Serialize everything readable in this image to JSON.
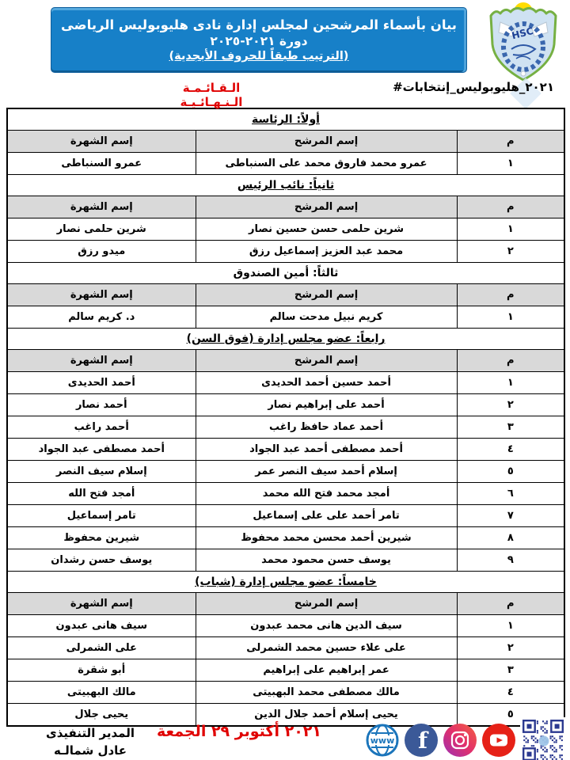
{
  "banner": {
    "line1": "بيان بأسماء المرشحين لمجلس إدارة نادى هليوبوليس الرياضى",
    "line2": "دورة ٢٠٢١-٢٠٢٥",
    "line3": "(الترتيب طبقاً للحروف الأبجدية)"
  },
  "logo": {
    "monogram": "HSC"
  },
  "subheader": {
    "hashtag_text": "#إنتخابات_هليوبوليس_٢٠٢١",
    "hashtag_parts": [
      "#",
      "إنتخابات",
      "_",
      "هليوبوليس",
      "_",
      "٢٠٢١"
    ],
    "final_list_label": "الـقـائـمـة الـنـهـائـيـة"
  },
  "table": {
    "columns": {
      "serial": "م",
      "candidate": "إسم المرشح",
      "known_as": "إسم الشهرة"
    },
    "sections": [
      {
        "title": "أولاً: الرئاسة",
        "underline": true,
        "rows": [
          {
            "no": "١",
            "candidate": "عمرو محمد فاروق محمد على السنباطى",
            "known_as": "عمرو السنباطى"
          }
        ]
      },
      {
        "title": "ثانياً: نائب الرئيس",
        "underline": true,
        "rows": [
          {
            "no": "١",
            "candidate": "شرين حلمى حسن حسين نصار",
            "known_as": "شرين حلمى نصار"
          },
          {
            "no": "٢",
            "candidate": "محمد عبد العزيز إسماعيل رزق",
            "known_as": "ميدو رزق"
          }
        ]
      },
      {
        "title": "ثالثاً: أمين الصندوق",
        "underline": false,
        "rows": [
          {
            "no": "١",
            "candidate": "كريم نبيل مدحت سالم",
            "known_as": "د. كريم سالم"
          }
        ]
      },
      {
        "title": "رابعاً: عضو مجلس إدارة (فوق السن)",
        "underline": true,
        "rows": [
          {
            "no": "١",
            "candidate": "أحمد حسين أحمد الحديدى",
            "known_as": "أحمد الحديدى"
          },
          {
            "no": "٢",
            "candidate": "أحمد على إبراهيم نصار",
            "known_as": "أحمد نصار"
          },
          {
            "no": "٣",
            "candidate": "أحمد عماد حافظ راغب",
            "known_as": "أحمد راغب"
          },
          {
            "no": "٤",
            "candidate": "أحمد مصطفى أحمد عبد الجواد",
            "known_as": "أحمد مصطفى عبد الجواد"
          },
          {
            "no": "٥",
            "candidate": "إسلام أحمد سيف النصر عمر",
            "known_as": "إسلام سيف النصر"
          },
          {
            "no": "٦",
            "candidate": "أمجد محمد فتح الله محمد",
            "known_as": "أمجد فتح الله"
          },
          {
            "no": "٧",
            "candidate": "تامر أحمد على على إسماعيل",
            "known_as": "تامر إسماعيل"
          },
          {
            "no": "٨",
            "candidate": "شيرين أحمد محسن محمد محفوظ",
            "known_as": "شيرين محفوظ"
          },
          {
            "no": "٩",
            "candidate": "يوسف حسن محمود محمد",
            "known_as": "يوسف حسن رشدان"
          }
        ]
      },
      {
        "title": "خامساً: عضو مجلس إدارة (شباب)",
        "underline": true,
        "rows": [
          {
            "no": "١",
            "candidate": "سيف الدين هانى محمد عبدون",
            "known_as": "سيف هانى عبدون"
          },
          {
            "no": "٢",
            "candidate": "على علاء حسين محمد الشمرلى",
            "known_as": "على الشمرلى"
          },
          {
            "no": "٣",
            "candidate": "عمر إبراهيم على إبراهيم",
            "known_as": "أبو شقرة"
          },
          {
            "no": "٤",
            "candidate": "مالك مصطفى محمد البهبيتى",
            "known_as": "مالك البهبيتى"
          },
          {
            "no": "٥",
            "candidate": "يحيى إسلام أحمد جلال الدين",
            "known_as": "يحيى جلال"
          }
        ]
      }
    ]
  },
  "footer": {
    "date_text": "الجمعة ٢٩ أكتوبر ٢٠٢١",
    "date_parts": [
      "الجمعة",
      "٢٩",
      "أكتوبر",
      "٢٠٢١"
    ],
    "signature_line1": "المدير التنفيذى",
    "signature_line2": "عادل شمالـه",
    "social_icons": [
      "globe-www",
      "facebook",
      "instagram",
      "youtube",
      "qr-code"
    ]
  },
  "colors": {
    "banner_blue": "#1780C8",
    "table_header_gray": "#D9D9D9",
    "accent_red": "#E00000",
    "logo_green": "#76B043",
    "logo_sun_yellow": "#FFDD00",
    "globe_blue": "#1B75BB",
    "facebook_blue": "#3B5998",
    "instagram_gradient": [
      "#9B30B5",
      "#E1306C",
      "#F56040"
    ],
    "youtube_red": "#E62117",
    "qr_blue": "#2B3990"
  }
}
